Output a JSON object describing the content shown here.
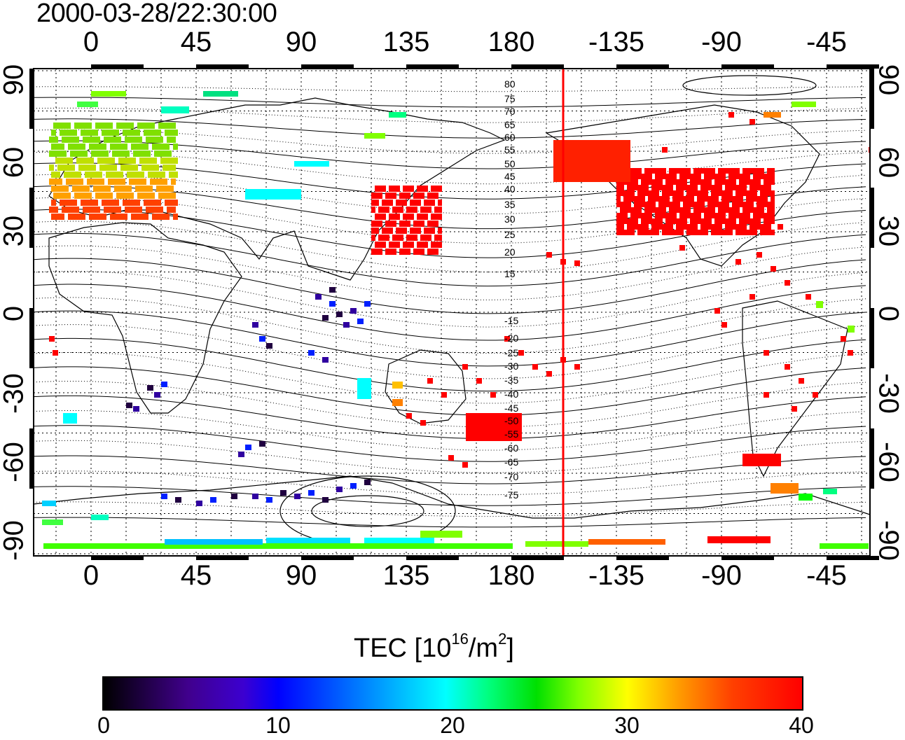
{
  "title": "2000-03-28/22:30:00",
  "map": {
    "type": "world TEC map",
    "lon_ticks_top": [
      "0",
      "45",
      "90",
      "135",
      "180",
      "-135",
      "-90",
      "-45"
    ],
    "lon_ticks_bottom": [
      "0",
      "45",
      "90",
      "135",
      "180",
      "-135",
      "-90",
      "-45"
    ],
    "lat_ticks_left": [
      "90",
      "60",
      "30",
      "0",
      "-30",
      "-60",
      "-90"
    ],
    "lat_ticks_right": [
      "90",
      "60",
      "30",
      "0",
      "-30",
      "-60",
      "-90"
    ],
    "contour_labels": [
      "80",
      "75",
      "70",
      "65",
      "60",
      "55",
      "50",
      "45",
      "40",
      "35",
      "30",
      "25",
      "20",
      "15",
      "-15",
      "-20",
      "-25",
      "-30",
      "-35",
      "-40",
      "-45",
      "-50",
      "-55",
      "-60",
      "-65",
      "-70",
      "-75"
    ],
    "terminator_color": "#ff0000",
    "terminator_longitude": -158
  },
  "colorbar": {
    "title_prefix": "TEC  [10",
    "title_sup1": "16",
    "title_mid": "/m",
    "title_sup2": "2",
    "title_suffix": "]",
    "ticks": [
      "0",
      "10",
      "20",
      "30",
      "40"
    ],
    "min": 0,
    "max": 40,
    "colors": [
      "#000000",
      "#40008c",
      "#0000ff",
      "#00ffff",
      "#00e000",
      "#ffff00",
      "#ff8000",
      "#ff0000"
    ]
  }
}
